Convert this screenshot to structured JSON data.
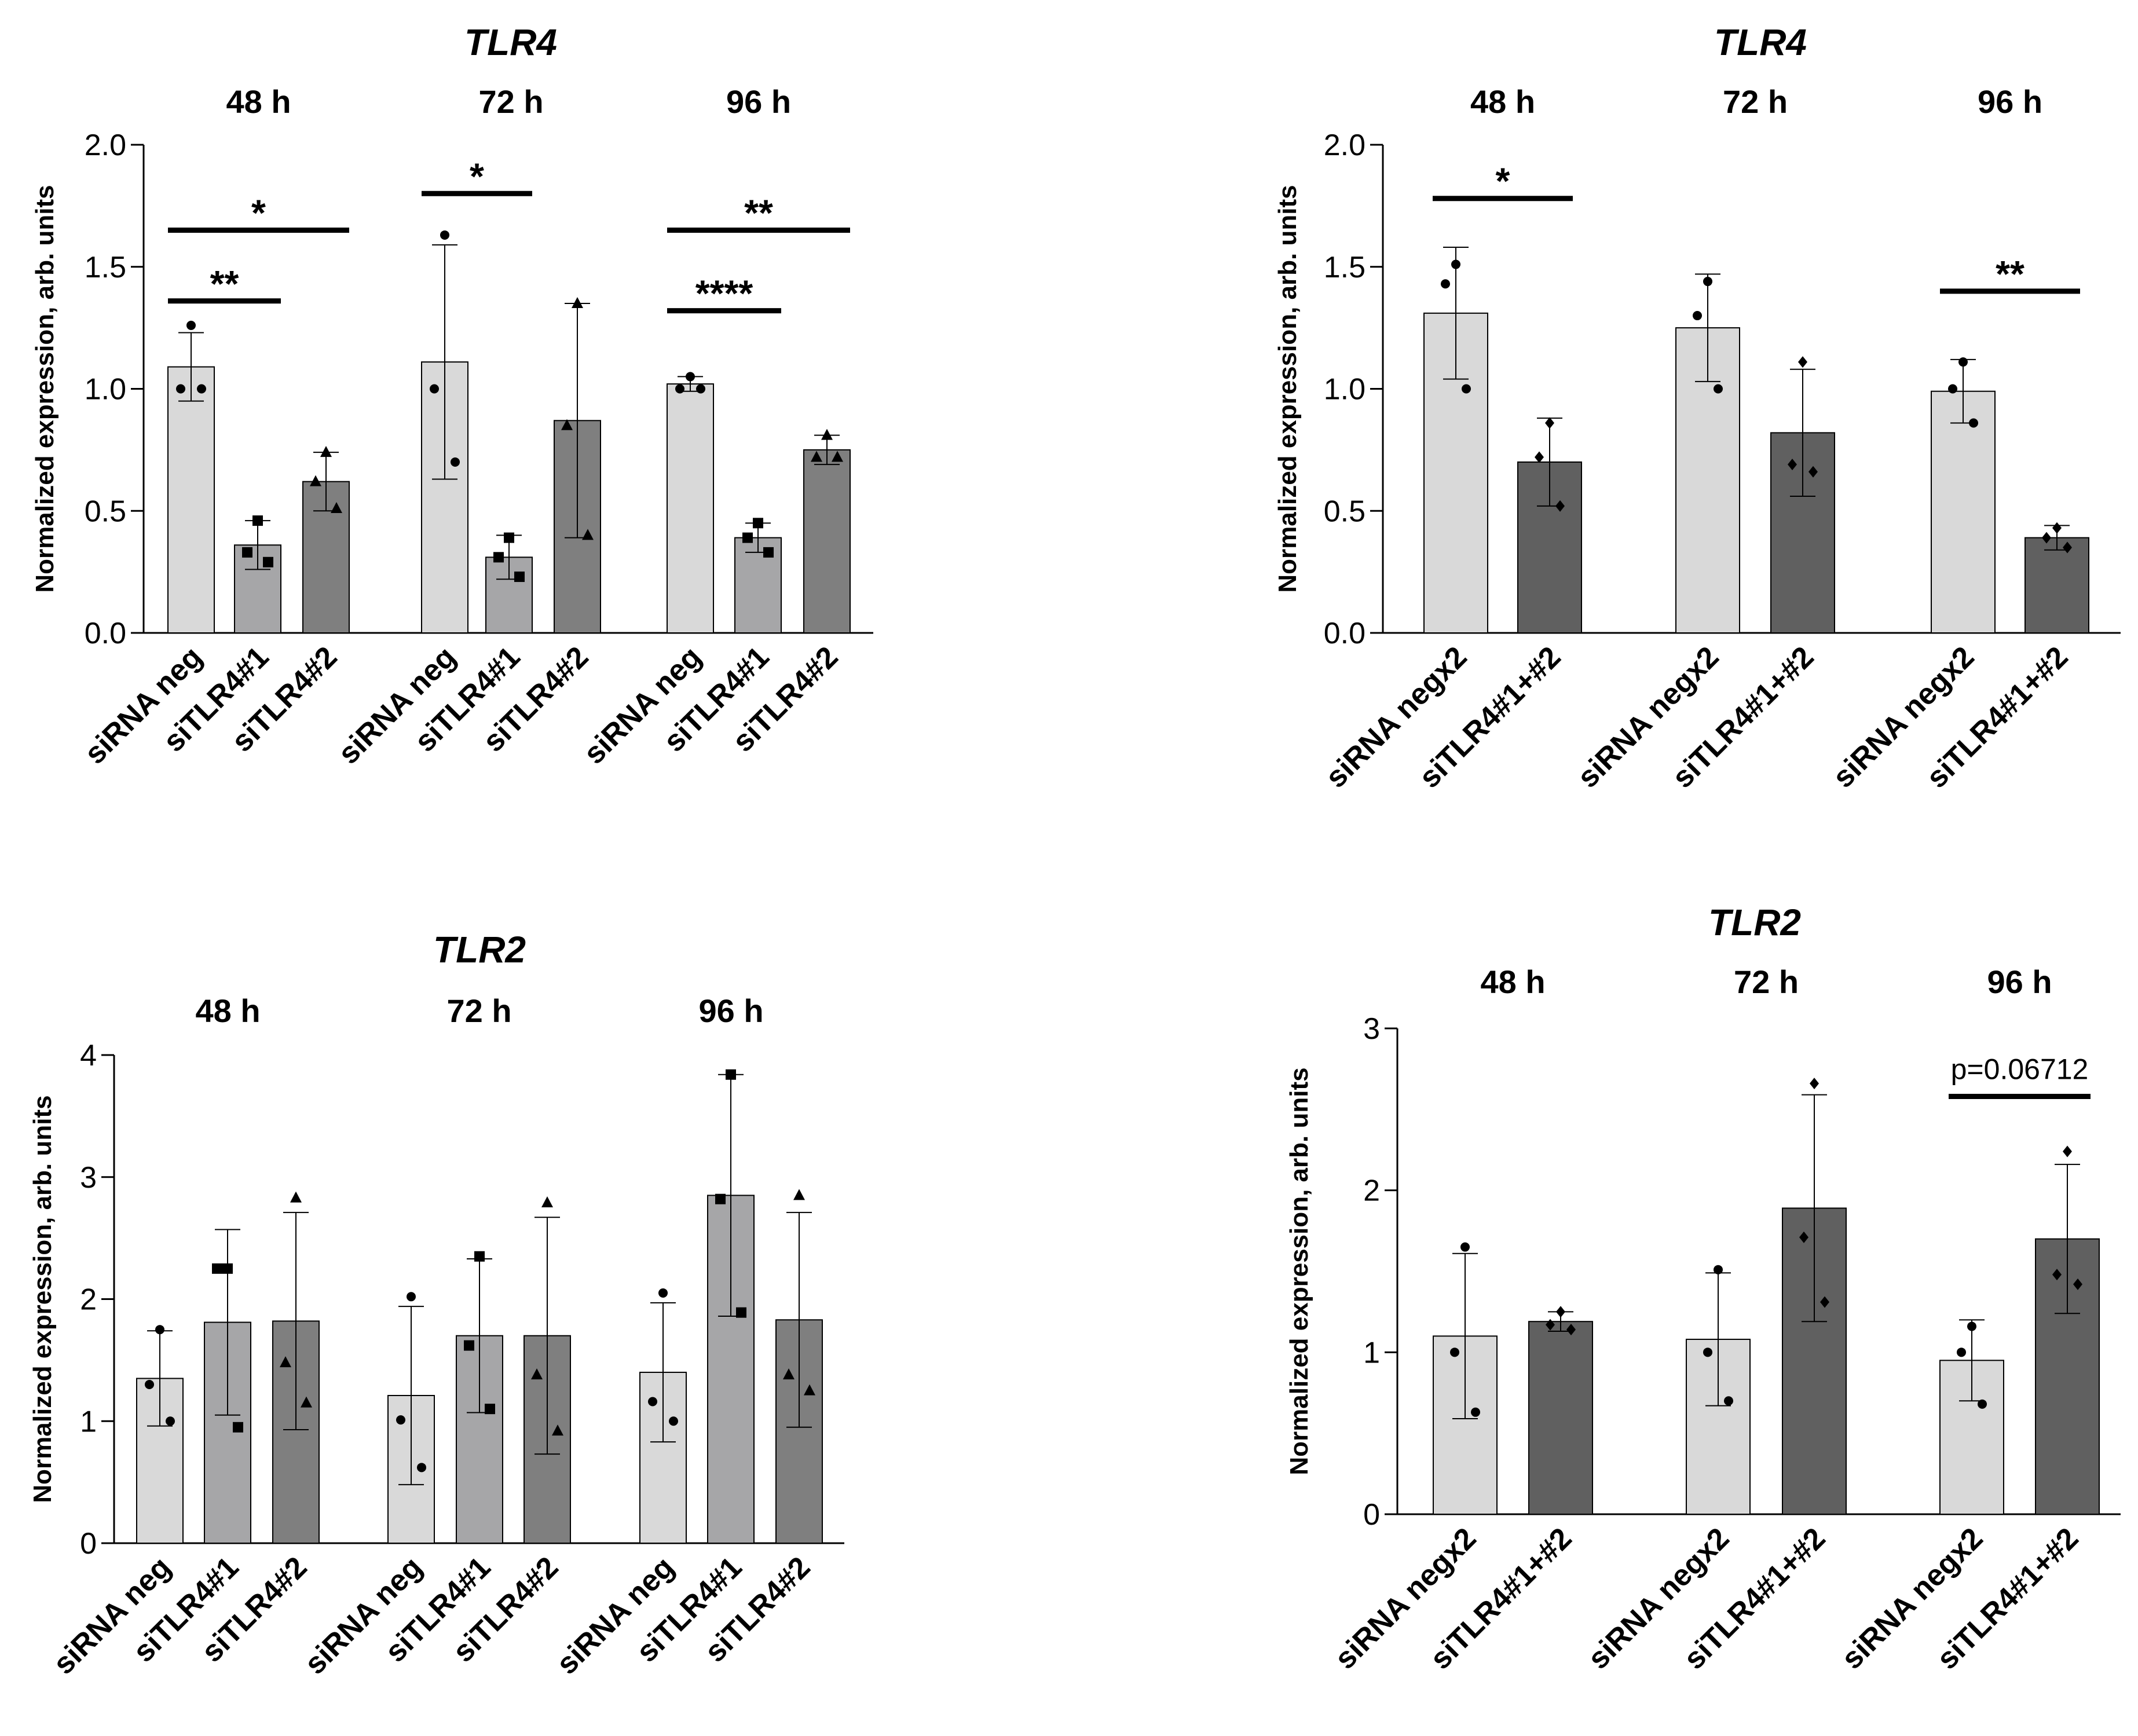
{
  "chart_data": [
    {
      "id": "tlr4-left",
      "type": "bar",
      "title": "TLR4",
      "ylabel": "Normalized expression, arb. units",
      "ylim": [
        0,
        2
      ],
      "yticks": [
        0.0,
        0.5,
        1.0,
        1.5,
        2.0
      ],
      "ytick_labels": [
        "0.0",
        "0.5",
        "1.0",
        "1.5",
        "2.0"
      ],
      "groups": [
        "48 h",
        "72 h",
        "96 h"
      ],
      "categories": [
        "siRNA neg",
        "siTLR4#1",
        "siTLR4#2"
      ],
      "colors": [
        "#d9d9d9",
        "#a6a6a8",
        "#7f7f7f"
      ],
      "markers": [
        "circle",
        "square",
        "triangle"
      ],
      "bars": [
        [
          {
            "mean": 1.09,
            "sd": 0.14,
            "points": [
              1.26,
              1.0,
              1.0
            ]
          },
          {
            "mean": 0.36,
            "sd": 0.1,
            "points": [
              0.46,
              0.33,
              0.29
            ]
          },
          {
            "mean": 0.62,
            "sd": 0.12,
            "points": [
              0.74,
              0.62,
              0.51
            ]
          }
        ],
        [
          {
            "mean": 1.11,
            "sd": 0.48,
            "points": [
              1.63,
              1.0,
              0.7
            ]
          },
          {
            "mean": 0.31,
            "sd": 0.09,
            "points": [
              0.39,
              0.31,
              0.23
            ]
          },
          {
            "mean": 0.87,
            "sd": 0.48,
            "points": [
              1.35,
              0.85,
              0.4
            ]
          }
        ],
        [
          {
            "mean": 1.02,
            "sd": 0.03,
            "points": [
              1.05,
              1.0,
              1.0
            ]
          },
          {
            "mean": 0.39,
            "sd": 0.06,
            "points": [
              0.45,
              0.39,
              0.33
            ]
          },
          {
            "mean": 0.75,
            "sd": 0.06,
            "points": [
              0.81,
              0.72,
              0.72
            ]
          }
        ]
      ],
      "annotations": [
        {
          "group": 0,
          "from": 0,
          "to": 1,
          "y": 1.36,
          "label": "**"
        },
        {
          "group": 0,
          "from": 0,
          "to": 2,
          "y": 1.65,
          "label": "*"
        },
        {
          "group": 1,
          "from": 0,
          "to": 1,
          "y": 1.8,
          "label": "*"
        },
        {
          "group": 2,
          "from": 0,
          "to": 1,
          "y": 1.32,
          "label": "****"
        },
        {
          "group": 2,
          "from": 0,
          "to": 2,
          "y": 1.65,
          "label": "**"
        }
      ]
    },
    {
      "id": "tlr4-right",
      "type": "bar",
      "title": "TLR4",
      "ylabel": "Normalized expression, arb. units",
      "ylim": [
        0,
        2
      ],
      "yticks": [
        0.0,
        0.5,
        1.0,
        1.5,
        2.0
      ],
      "ytick_labels": [
        "0.0",
        "0.5",
        "1.0",
        "1.5",
        "2.0"
      ],
      "groups": [
        "48 h",
        "72 h",
        "96 h"
      ],
      "categories": [
        "siRNA negx2",
        "siTLR4#1+#2"
      ],
      "colors": [
        "#d9d9d9",
        "#606060"
      ],
      "markers": [
        "circle",
        "diamond"
      ],
      "bars": [
        [
          {
            "mean": 1.31,
            "sd": 0.27,
            "points": [
              1.51,
              1.43,
              1.0
            ]
          },
          {
            "mean": 0.7,
            "sd": 0.18,
            "points": [
              0.86,
              0.72,
              0.52
            ]
          }
        ],
        [
          {
            "mean": 1.25,
            "sd": 0.22,
            "points": [
              1.44,
              1.3,
              1.0
            ]
          },
          {
            "mean": 0.82,
            "sd": 0.26,
            "points": [
              1.11,
              0.69,
              0.66
            ]
          }
        ],
        [
          {
            "mean": 0.99,
            "sd": 0.13,
            "points": [
              1.11,
              1.0,
              0.86
            ]
          },
          {
            "mean": 0.39,
            "sd": 0.05,
            "points": [
              0.43,
              0.39,
              0.35
            ]
          }
        ]
      ],
      "annotations": [
        {
          "group": 0,
          "from": 0,
          "to": 1,
          "y": 1.78,
          "label": "*"
        },
        {
          "group": 2,
          "from": 0,
          "to": 1,
          "y": 1.4,
          "label": "**"
        }
      ]
    },
    {
      "id": "tlr2-left",
      "type": "bar",
      "title": "TLR2",
      "ylabel": "Normalized expression, arb. units",
      "ylim": [
        0,
        4
      ],
      "yticks": [
        0,
        1,
        2,
        3,
        4
      ],
      "ytick_labels": [
        "0",
        "1",
        "2",
        "3",
        "4"
      ],
      "groups": [
        "48 h",
        "72 h",
        "96 h"
      ],
      "categories": [
        "siRNA neg",
        "siTLR4#1",
        "siTLR4#2"
      ],
      "colors": [
        "#d9d9d9",
        "#a6a6a8",
        "#7f7f7f"
      ],
      "markers": [
        "circle",
        "square",
        "triangle"
      ],
      "bars": [
        [
          {
            "mean": 1.35,
            "sd": 0.39,
            "points": [
              1.75,
              1.3,
              1.0
            ]
          },
          {
            "mean": 1.81,
            "sd": 0.76,
            "points": [
              2.25,
              2.25,
              0.95
            ]
          },
          {
            "mean": 1.82,
            "sd": 0.89,
            "points": [
              2.83,
              1.48,
              1.15
            ]
          }
        ],
        [
          {
            "mean": 1.21,
            "sd": 0.73,
            "points": [
              2.02,
              1.01,
              0.62
            ]
          },
          {
            "mean": 1.7,
            "sd": 0.63,
            "points": [
              2.35,
              1.62,
              1.1
            ]
          },
          {
            "mean": 1.7,
            "sd": 0.97,
            "points": [
              2.79,
              1.38,
              0.92
            ]
          }
        ],
        [
          {
            "mean": 1.4,
            "sd": 0.57,
            "points": [
              2.05,
              1.16,
              1.0
            ]
          },
          {
            "mean": 2.85,
            "sd": 0.99,
            "points": [
              3.84,
              2.82,
              1.89
            ]
          },
          {
            "mean": 1.83,
            "sd": 0.88,
            "points": [
              2.85,
              1.38,
              1.25
            ]
          }
        ]
      ],
      "annotations": []
    },
    {
      "id": "tlr2-right",
      "type": "bar",
      "title": "TLR2",
      "ylabel": "Normalized expression, arb. units",
      "ylim": [
        0,
        3
      ],
      "yticks": [
        0,
        1,
        2,
        3
      ],
      "ytick_labels": [
        "0",
        "1",
        "2",
        "3"
      ],
      "groups": [
        "48 h",
        "72 h",
        "96 h"
      ],
      "categories": [
        "siRNA negx2",
        "siTLR4#1+#2"
      ],
      "colors": [
        "#d9d9d9",
        "#606060"
      ],
      "markers": [
        "circle",
        "diamond"
      ],
      "bars": [
        [
          {
            "mean": 1.1,
            "sd": 0.51,
            "points": [
              1.65,
              1.0,
              0.63
            ]
          },
          {
            "mean": 1.19,
            "sd": 0.06,
            "points": [
              1.25,
              1.17,
              1.14
            ]
          }
        ],
        [
          {
            "mean": 1.08,
            "sd": 0.41,
            "points": [
              1.51,
              1.0,
              0.7
            ]
          },
          {
            "mean": 1.89,
            "sd": 0.7,
            "points": [
              2.66,
              1.71,
              1.31
            ]
          }
        ],
        [
          {
            "mean": 0.95,
            "sd": 0.25,
            "points": [
              1.16,
              1.0,
              0.68
            ]
          },
          {
            "mean": 1.7,
            "sd": 0.46,
            "points": [
              2.24,
              1.48,
              1.42
            ]
          }
        ]
      ],
      "annotations": [
        {
          "group": 2,
          "from": 0,
          "to": 1,
          "y": 2.58,
          "label": "p=0.06712"
        }
      ]
    }
  ]
}
